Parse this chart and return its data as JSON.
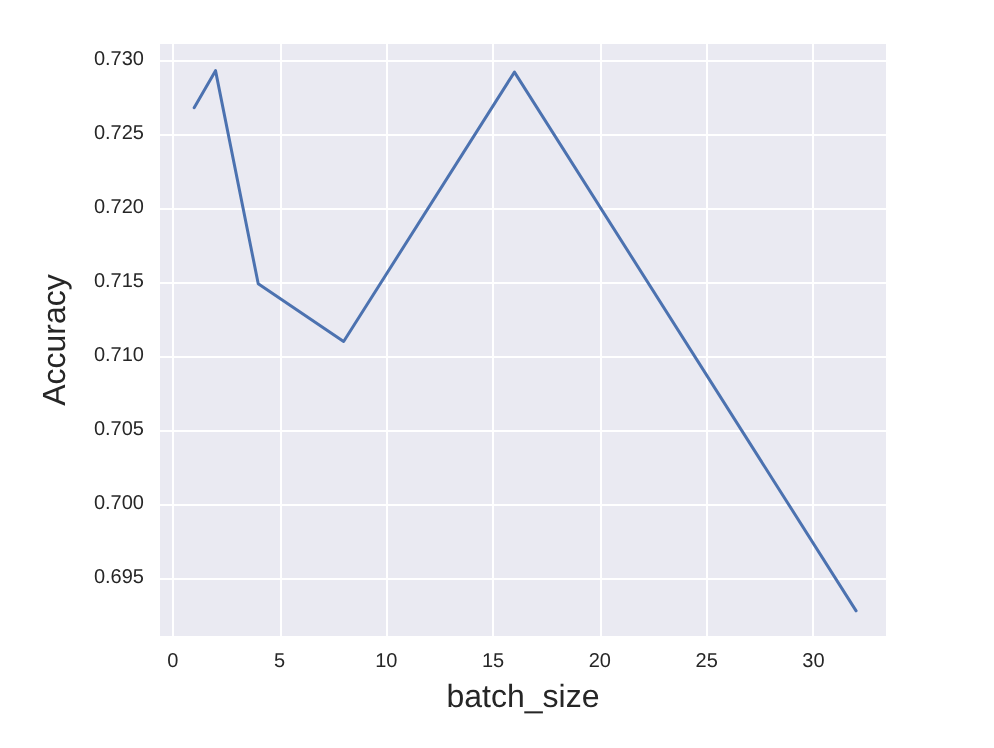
{
  "chart_data": {
    "type": "line",
    "xlabel": "batch_size",
    "ylabel": "Accuracy",
    "x": [
      1,
      2,
      4,
      8,
      16,
      32
    ],
    "series": [
      {
        "color": "#4c72b0",
        "values": [
          0.7268,
          0.7293,
          0.7149,
          0.711,
          0.7292,
          0.6928
        ]
      }
    ],
    "xlim": [
      -0.6,
      33.4
    ],
    "xticks": [
      0,
      5,
      10,
      15,
      20,
      25,
      30
    ],
    "ylim": [
      0.6911,
      0.7311
    ],
    "yticks": [
      {
        "value": 0.695,
        "label": "0.695"
      },
      {
        "value": 0.7,
        "label": "0.700"
      },
      {
        "value": 0.705,
        "label": "0.705"
      },
      {
        "value": 0.71,
        "label": "0.710"
      },
      {
        "value": 0.715,
        "label": "0.715"
      },
      {
        "value": 0.72,
        "label": "0.720"
      },
      {
        "value": 0.725,
        "label": "0.725"
      },
      {
        "value": 0.73,
        "label": "0.730"
      }
    ],
    "grid": true,
    "marker": "none",
    "line_style": "solid"
  }
}
